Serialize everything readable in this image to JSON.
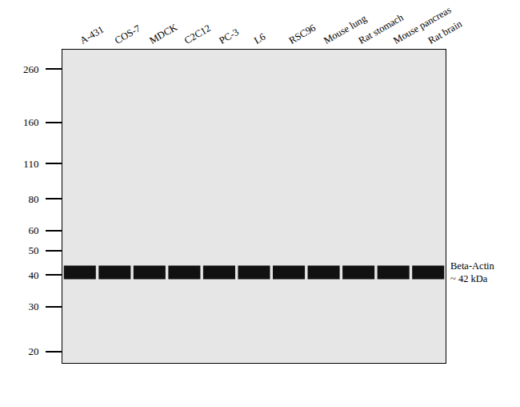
{
  "chart_data": {
    "type": "western_blot",
    "categories": [
      "A-431",
      "COS-7",
      "MDCK",
      "C2C12",
      "PC-3",
      "L6",
      "RSC96",
      "Mouse lung",
      "Rat stomach",
      "Mouse pancreas",
      "Rat brain"
    ],
    "values": [
      41,
      41,
      41,
      41,
      41,
      41,
      41,
      41,
      41,
      41,
      41
    ],
    "color": "#111111",
    "annotations": [
      "Beta-Actin",
      "~ 42 kDa"
    ],
    "ylim": [
      18,
      310
    ],
    "yticks": [
      20,
      30,
      40,
      50,
      60,
      80,
      110,
      160,
      260
    ],
    "log": "y",
    "grid": false
  }
}
